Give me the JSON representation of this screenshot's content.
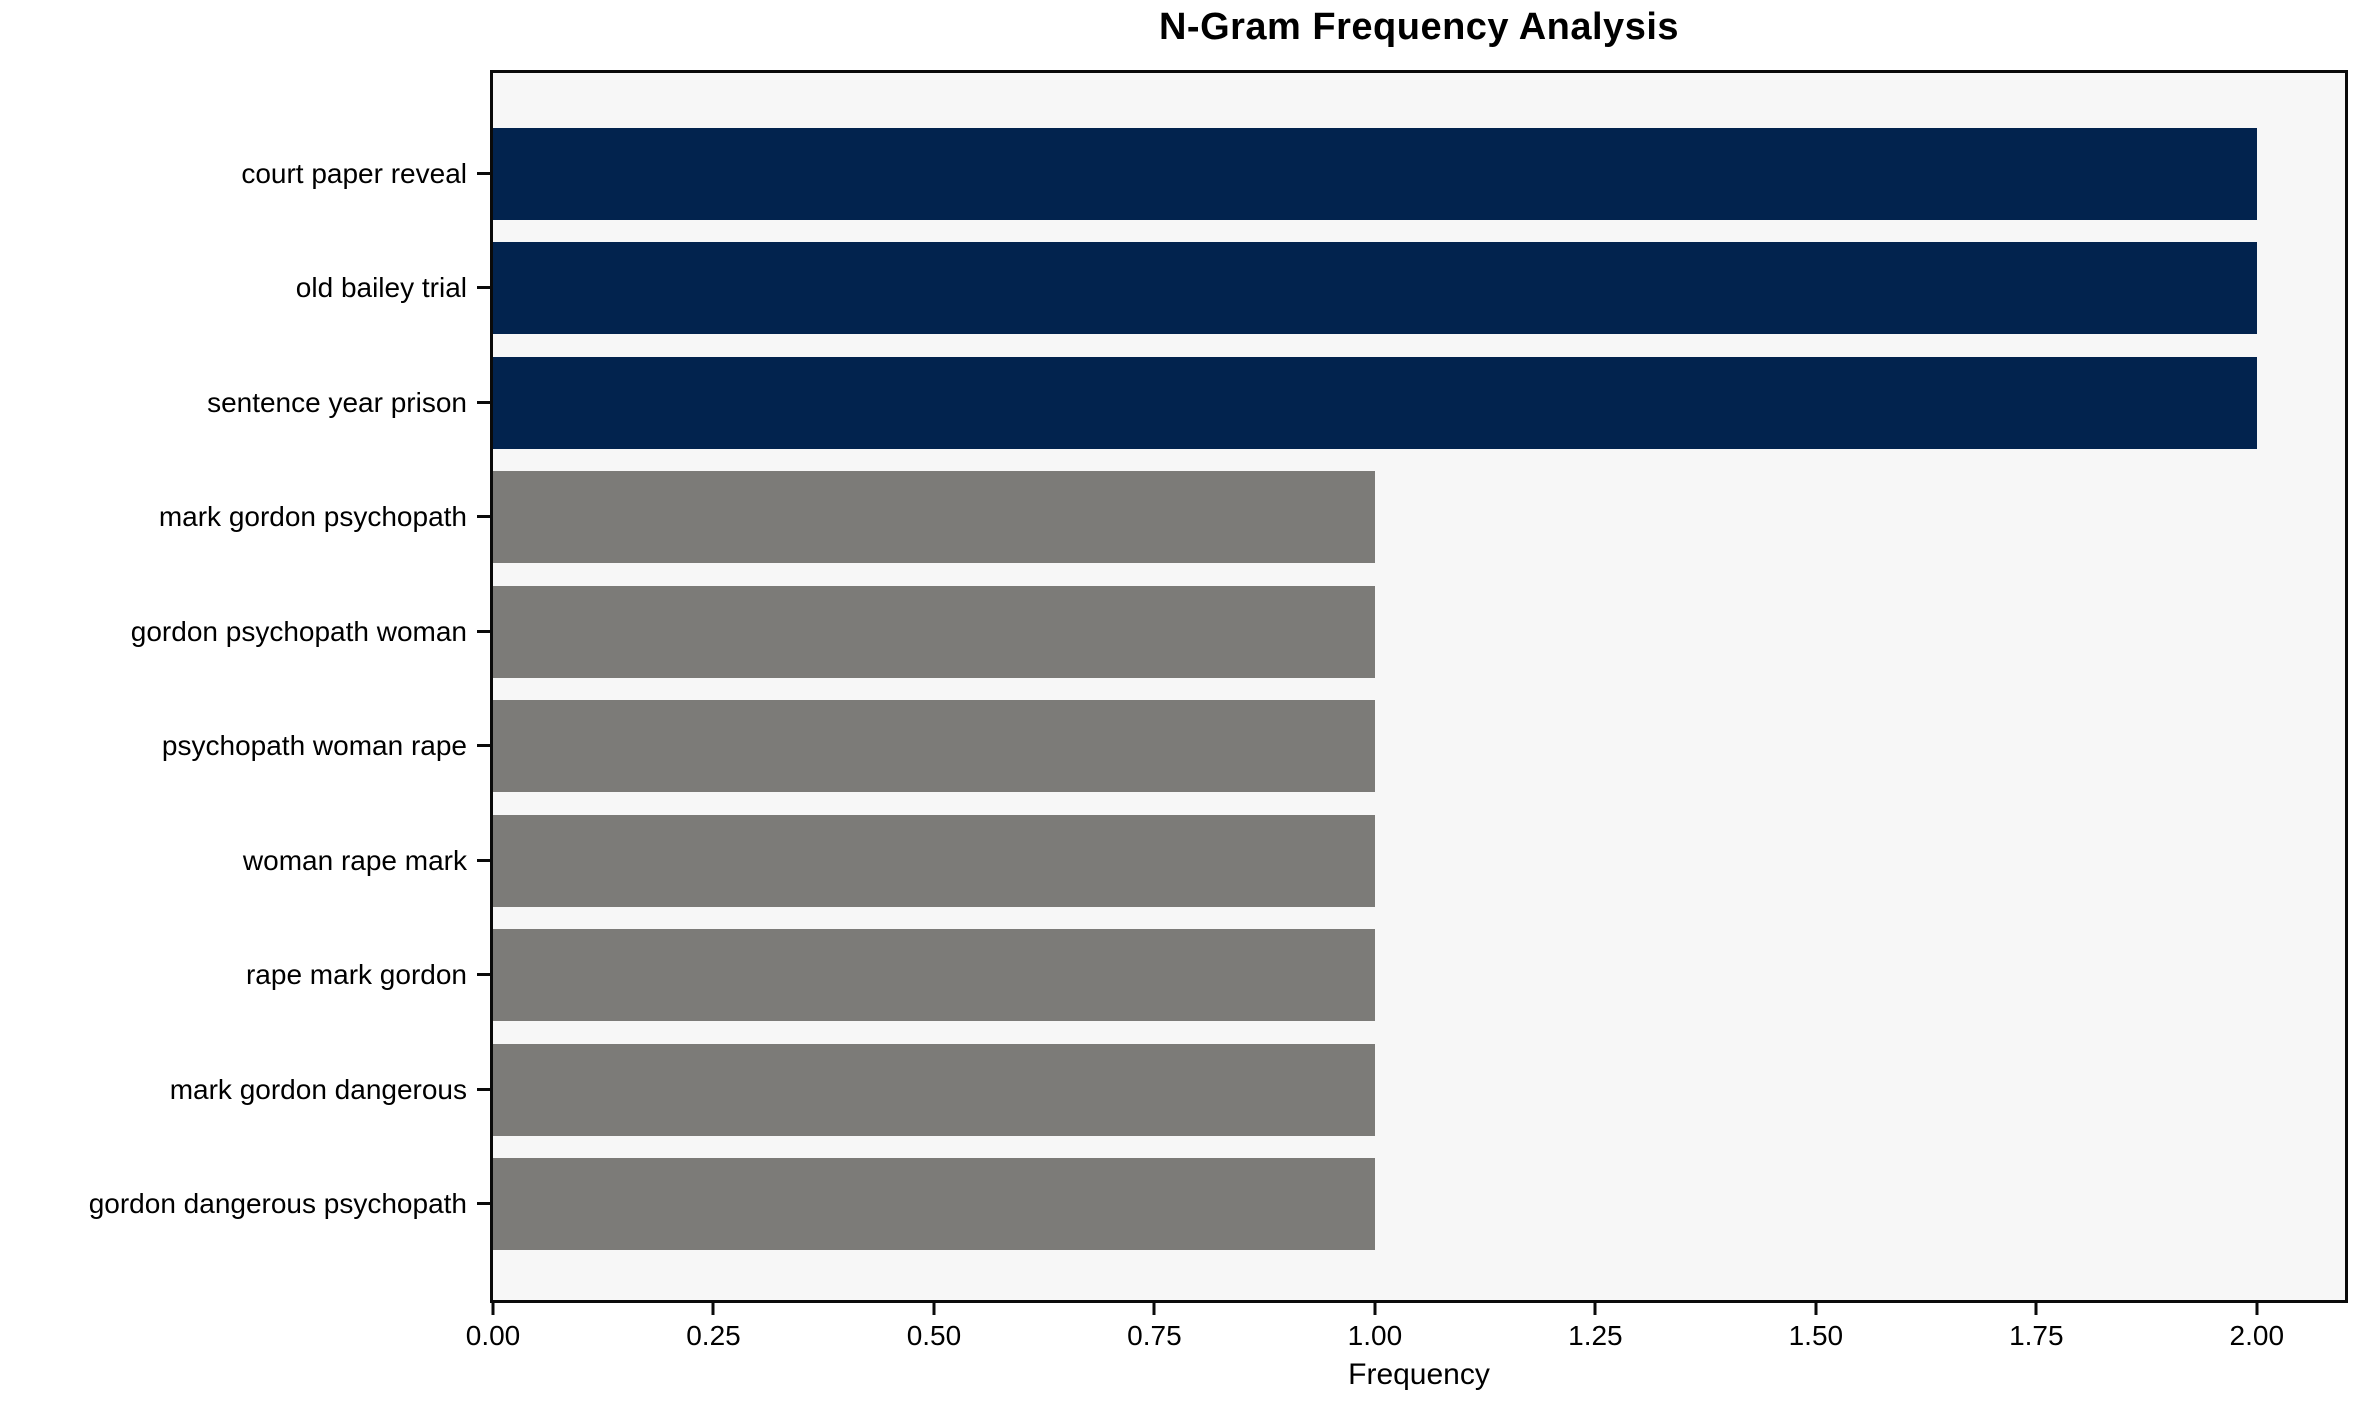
{
  "title": "N-Gram Frequency Analysis",
  "chart_data": {
    "type": "bar",
    "orientation": "horizontal",
    "title": "N-Gram Frequency Analysis",
    "xlabel": "Frequency",
    "ylabel": "",
    "categories": [
      "court paper reveal",
      "old bailey trial",
      "sentence year prison",
      "mark gordon psychopath",
      "gordon psychopath woman",
      "psychopath woman rape",
      "woman rape mark",
      "rape mark gordon",
      "mark gordon dangerous",
      "gordon dangerous psychopath"
    ],
    "values": [
      2,
      2,
      2,
      1,
      1,
      1,
      1,
      1,
      1,
      1
    ],
    "bar_colors": [
      "#02234e",
      "#02234e",
      "#02234e",
      "#7c7b78",
      "#7c7b78",
      "#7c7b78",
      "#7c7b78",
      "#7c7b78",
      "#7c7b78",
      "#7c7b78"
    ],
    "xlim": [
      0,
      2.1
    ],
    "x_tick_values": [
      0,
      0.25,
      0.5,
      0.75,
      1.0,
      1.25,
      1.5,
      1.75,
      2.0
    ],
    "x_tick_labels": [
      "0.00",
      "0.25",
      "0.50",
      "0.75",
      "1.00",
      "1.25",
      "1.50",
      "1.75",
      "2.00"
    ],
    "grid": false,
    "legend_position": "none",
    "plot_background": "#f7f7f7",
    "figure_background": "#ffffff",
    "spine_color": "#0a0a0a",
    "color_legend": {
      "frequency_2": "#02234e",
      "frequency_1": "#7c7b78"
    }
  }
}
